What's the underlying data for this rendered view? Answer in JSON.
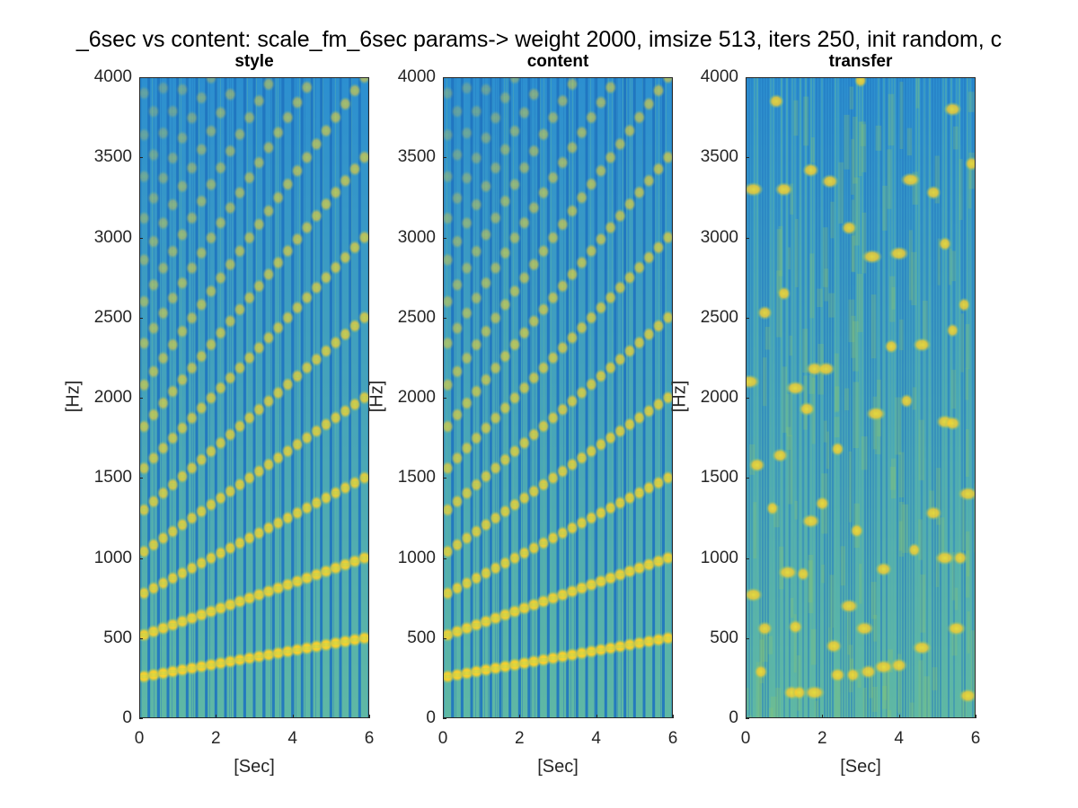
{
  "figure": {
    "suptitle": "_6sec vs content: scale_fm_6sec  params-> weight 2000, imsize 513, iters 250, init random, c"
  },
  "colors": {
    "background": "#2c8fd0",
    "stripe_dark": "#1f74c0",
    "midtone": "#5fb8a4",
    "green": "#8fc66a",
    "harmonic_yellow": "#f5cc2f",
    "harmonic_core": "#fbe12c"
  },
  "chart_data": [
    {
      "type": "heatmap",
      "title": "style",
      "xlabel": "[Sec]",
      "ylabel": "[Hz]",
      "xlim": [
        0,
        6
      ],
      "ylim": [
        0,
        4000
      ],
      "xticks": [
        "0",
        "2",
        "4",
        "6"
      ],
      "yticks": [
        "0",
        "500",
        "1000",
        "1500",
        "2000",
        "2500",
        "3000",
        "3500",
        "4000"
      ],
      "description_values": {
        "fundamental_hz_start": 260,
        "fundamental_hz_end": 500,
        "notes": 24,
        "harmonics": 15
      }
    },
    {
      "type": "heatmap",
      "title": "content",
      "xlabel": "[Sec]",
      "ylabel": "[Hz]",
      "xlim": [
        0,
        6
      ],
      "ylim": [
        0,
        4000
      ],
      "xticks": [
        "0",
        "2",
        "4",
        "6"
      ],
      "yticks": [
        "0",
        "500",
        "1000",
        "1500",
        "2000",
        "2500",
        "3000",
        "3500",
        "4000"
      ],
      "description_values": {
        "fundamental_hz_start": 260,
        "fundamental_hz_end": 500,
        "notes": 24,
        "harmonics": 15
      }
    },
    {
      "type": "heatmap",
      "title": "transfer",
      "xlabel": "[Sec]",
      "ylabel": "[Hz]",
      "xlim": [
        0,
        6
      ],
      "ylim": [
        0,
        4000
      ],
      "xticks": [
        "0",
        "2",
        "4",
        "6"
      ],
      "yticks": [
        "0",
        "500",
        "1000",
        "1500",
        "2000",
        "2500",
        "3000",
        "3500",
        "4000"
      ],
      "blobs": [
        [
          1.2,
          160
        ],
        [
          1.4,
          160
        ],
        [
          1.8,
          160
        ],
        [
          2.4,
          270
        ],
        [
          2.8,
          270
        ],
        [
          3.2,
          290
        ],
        [
          3.6,
          320
        ],
        [
          4.0,
          330
        ],
        [
          5.2,
          1000
        ],
        [
          5.6,
          1000
        ],
        [
          5.2,
          1850
        ],
        [
          5.4,
          1840
        ],
        [
          5.4,
          2420
        ],
        [
          4.3,
          3360
        ],
        [
          5.4,
          3800
        ],
        [
          2.2,
          3350
        ],
        [
          1.0,
          3300
        ],
        [
          0.2,
          3300
        ],
        [
          0.5,
          2530
        ],
        [
          1.6,
          1930
        ],
        [
          1.8,
          2180
        ],
        [
          2.1,
          2180
        ],
        [
          1.7,
          1230
        ],
        [
          2.0,
          1340
        ],
        [
          0.7,
          1310
        ],
        [
          0.2,
          770
        ],
        [
          0.4,
          290
        ],
        [
          1.1,
          910
        ],
        [
          1.5,
          900
        ],
        [
          2.7,
          700
        ],
        [
          3.6,
          930
        ],
        [
          4.4,
          1050
        ],
        [
          4.9,
          1280
        ],
        [
          0.9,
          1640
        ],
        [
          2.4,
          1680
        ],
        [
          3.4,
          1900
        ],
        [
          4.2,
          1980
        ],
        [
          4.6,
          2330
        ],
        [
          3.8,
          2320
        ],
        [
          4.0,
          2900
        ],
        [
          2.9,
          1170
        ],
        [
          1.3,
          2060
        ],
        [
          1.0,
          2650
        ],
        [
          3.3,
          2880
        ],
        [
          4.9,
          3280
        ],
        [
          0.8,
          3850
        ],
        [
          1.7,
          3420
        ],
        [
          3.0,
          3980
        ],
        [
          5.8,
          1400
        ],
        [
          5.9,
          3460
        ],
        [
          0.5,
          560
        ],
        [
          1.3,
          570
        ],
        [
          2.3,
          450
        ],
        [
          3.1,
          560
        ],
        [
          4.6,
          440
        ],
        [
          5.5,
          560
        ],
        [
          5.8,
          140
        ],
        [
          0.1,
          2100
        ],
        [
          0.3,
          1580
        ],
        [
          2.7,
          3060
        ],
        [
          5.2,
          2960
        ],
        [
          5.7,
          2580
        ]
      ]
    }
  ]
}
